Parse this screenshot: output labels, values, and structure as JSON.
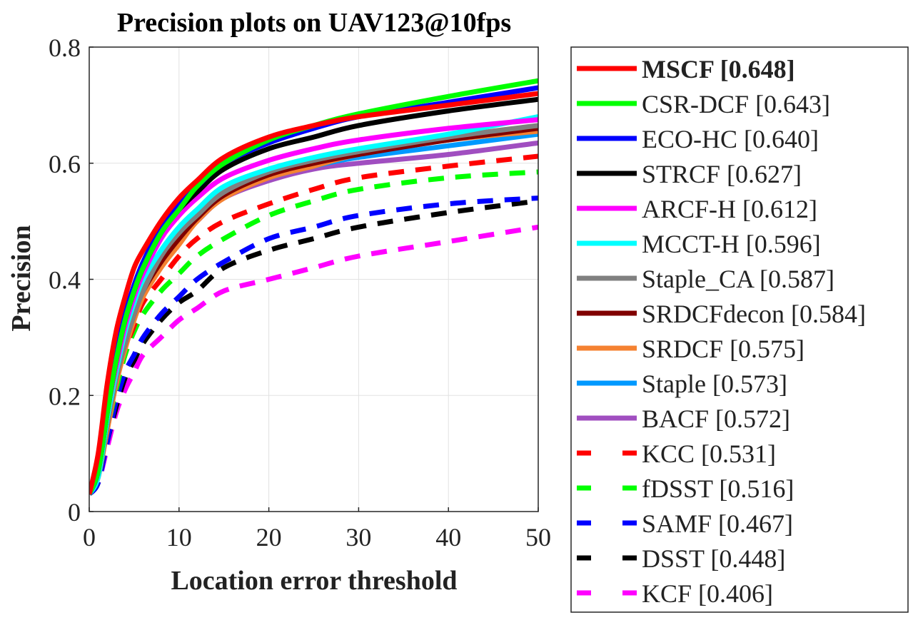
{
  "chart_data": {
    "type": "line",
    "title": "Precision plots on UAV123@10fps",
    "xlabel": "Location error threshold",
    "ylabel": "Precision",
    "xlim": [
      0,
      50
    ],
    "ylim": [
      0,
      0.8
    ],
    "xticks": [
      0,
      10,
      20,
      30,
      40,
      50
    ],
    "yticks": [
      0,
      0.2,
      0.4,
      0.6,
      0.8
    ],
    "xtick_labels": [
      "0",
      "10",
      "20",
      "30",
      "40",
      "50"
    ],
    "ytick_labels": [
      "0",
      "0.2",
      "0.4",
      "0.6",
      "0.8"
    ],
    "grid": true,
    "legend_position": "outside-right",
    "x": [
      0,
      1,
      2,
      3,
      4,
      5,
      6,
      8,
      10,
      12,
      15,
      20,
      25,
      30,
      40,
      50
    ],
    "series": [
      {
        "name": "MSCF [0.648]",
        "legend": "MSCF [0.648]",
        "bold": true,
        "color": "#ff0000",
        "dash": "solid",
        "values": [
          0.03,
          0.1,
          0.22,
          0.31,
          0.37,
          0.42,
          0.45,
          0.5,
          0.54,
          0.57,
          0.61,
          0.645,
          0.665,
          0.68,
          0.7,
          0.72
        ]
      },
      {
        "name": "CSR-DCF [0.643]",
        "legend": "CSR-DCF [0.643]",
        "bold": false,
        "color": "#00ff00",
        "dash": "solid",
        "values": [
          0.03,
          0.07,
          0.17,
          0.26,
          0.33,
          0.38,
          0.42,
          0.48,
          0.52,
          0.56,
          0.6,
          0.64,
          0.665,
          0.685,
          0.715,
          0.742
        ]
      },
      {
        "name": "ECO-HC [0.640]",
        "legend": "ECO-HC [0.640]",
        "bold": false,
        "color": "#0000ff",
        "dash": "solid",
        "values": [
          0.03,
          0.07,
          0.18,
          0.27,
          0.34,
          0.39,
          0.43,
          0.49,
          0.53,
          0.56,
          0.6,
          0.635,
          0.66,
          0.68,
          0.705,
          0.73
        ]
      },
      {
        "name": "STRCF [0.627]",
        "legend": "STRCF [0.627]",
        "bold": false,
        "color": "#000000",
        "dash": "solid",
        "values": [
          0.03,
          0.07,
          0.17,
          0.26,
          0.33,
          0.38,
          0.42,
          0.48,
          0.52,
          0.55,
          0.59,
          0.625,
          0.645,
          0.665,
          0.69,
          0.71
        ]
      },
      {
        "name": "ARCF-H [0.612]",
        "legend": "ARCF-H [0.612]",
        "bold": false,
        "color": "#ff00ff",
        "dash": "solid",
        "values": [
          0.03,
          0.07,
          0.17,
          0.25,
          0.32,
          0.37,
          0.41,
          0.47,
          0.51,
          0.54,
          0.575,
          0.605,
          0.625,
          0.64,
          0.66,
          0.675
        ]
      },
      {
        "name": "MCCT-H [0.596]",
        "legend": "MCCT-H [0.596]",
        "bold": false,
        "color": "#00ffff",
        "dash": "solid",
        "values": [
          0.03,
          0.06,
          0.16,
          0.24,
          0.31,
          0.36,
          0.4,
          0.45,
          0.49,
          0.52,
          0.56,
          0.59,
          0.61,
          0.625,
          0.65,
          0.68
        ]
      },
      {
        "name": "Staple_CA [0.587]",
        "legend": "Staple_CA [0.587]",
        "bold": false,
        "color": "#808080",
        "dash": "solid",
        "values": [
          0.03,
          0.06,
          0.15,
          0.23,
          0.29,
          0.34,
          0.38,
          0.44,
          0.48,
          0.51,
          0.55,
          0.585,
          0.605,
          0.62,
          0.645,
          0.665
        ]
      },
      {
        "name": "SRDCFdecon [0.584]",
        "legend": "SRDCFdecon [0.584]",
        "bold": false,
        "color": "#800000",
        "dash": "solid",
        "values": [
          0.03,
          0.06,
          0.15,
          0.23,
          0.29,
          0.34,
          0.38,
          0.43,
          0.47,
          0.505,
          0.545,
          0.58,
          0.6,
          0.615,
          0.64,
          0.66
        ]
      },
      {
        "name": "SRDCF [0.575]",
        "legend": "SRDCF [0.575]",
        "bold": false,
        "color": "#f58231",
        "dash": "solid",
        "values": [
          0.03,
          0.06,
          0.14,
          0.22,
          0.28,
          0.33,
          0.37,
          0.42,
          0.46,
          0.5,
          0.54,
          0.575,
          0.595,
          0.615,
          0.64,
          0.655
        ]
      },
      {
        "name": "Staple [0.573]",
        "legend": "Staple [0.573]",
        "bold": false,
        "color": "#0099ff",
        "dash": "solid",
        "values": [
          0.03,
          0.06,
          0.15,
          0.23,
          0.29,
          0.34,
          0.38,
          0.44,
          0.48,
          0.51,
          0.545,
          0.575,
          0.595,
          0.61,
          0.63,
          0.65
        ]
      },
      {
        "name": "BACF [0.572]",
        "legend": "BACF [0.572]",
        "bold": false,
        "color": "#a04ec0",
        "dash": "solid",
        "values": [
          0.03,
          0.06,
          0.15,
          0.23,
          0.29,
          0.34,
          0.38,
          0.43,
          0.47,
          0.5,
          0.54,
          0.57,
          0.59,
          0.6,
          0.615,
          0.635
        ]
      },
      {
        "name": "KCC [0.531]",
        "legend": "KCC [0.531]",
        "bold": false,
        "color": "#ff0000",
        "dash": "dashed",
        "values": [
          0.03,
          0.06,
          0.14,
          0.22,
          0.28,
          0.32,
          0.36,
          0.4,
          0.44,
          0.47,
          0.5,
          0.53,
          0.555,
          0.575,
          0.595,
          0.612
        ]
      },
      {
        "name": "fDSST [0.516]",
        "legend": "fDSST [0.516]",
        "bold": false,
        "color": "#00ff00",
        "dash": "dashed",
        "values": [
          0.03,
          0.06,
          0.14,
          0.21,
          0.27,
          0.31,
          0.34,
          0.38,
          0.41,
          0.44,
          0.47,
          0.51,
          0.535,
          0.555,
          0.575,
          0.585
        ]
      },
      {
        "name": "SAMF [0.467]",
        "legend": "SAMF [0.467]",
        "bold": false,
        "color": "#0000ff",
        "dash": "dashed",
        "values": [
          0.03,
          0.05,
          0.12,
          0.19,
          0.24,
          0.27,
          0.3,
          0.34,
          0.37,
          0.4,
          0.43,
          0.47,
          0.49,
          0.51,
          0.53,
          0.54
        ]
      },
      {
        "name": "DSST [0.448]",
        "legend": "DSST [0.448]",
        "bold": false,
        "color": "#000000",
        "dash": "dashed",
        "values": [
          0.03,
          0.05,
          0.12,
          0.18,
          0.23,
          0.26,
          0.29,
          0.33,
          0.36,
          0.38,
          0.42,
          0.45,
          0.47,
          0.49,
          0.515,
          0.535
        ]
      },
      {
        "name": "KCF [0.406]",
        "legend": "KCF [0.406]",
        "bold": false,
        "color": "#ff00ff",
        "dash": "dashed",
        "values": [
          0.03,
          0.05,
          0.11,
          0.17,
          0.21,
          0.24,
          0.27,
          0.3,
          0.33,
          0.35,
          0.38,
          0.4,
          0.42,
          0.44,
          0.465,
          0.49
        ]
      }
    ]
  }
}
